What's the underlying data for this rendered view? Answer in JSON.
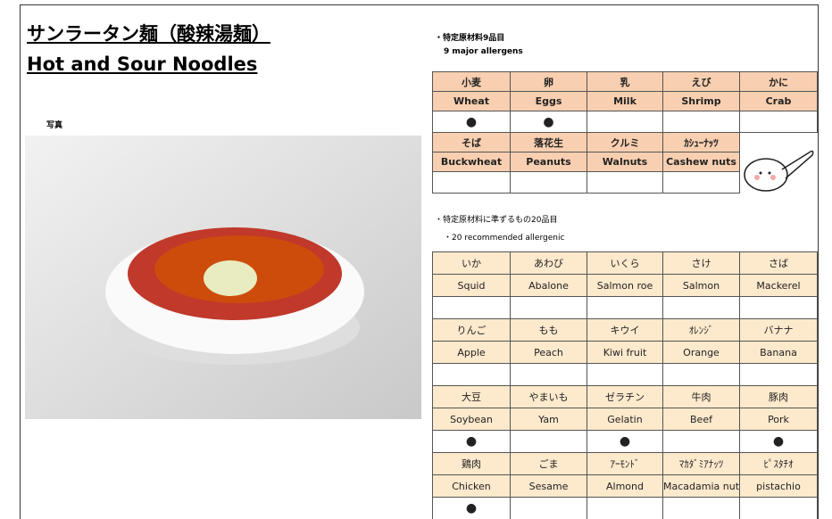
{
  "title_jp": "サンラータン麺（酸辣湯麺）",
  "title_en": "Hot and Sour Noodles",
  "photo_label": "写真",
  "major": {
    "heading": "・特定原材料9品目",
    "subheading": "9 major allergens",
    "items": [
      {
        "jp": "小麦",
        "en": "Wheat",
        "mark": "●"
      },
      {
        "jp": "卵",
        "en": "Eggs",
        "mark": "●"
      },
      {
        "jp": "乳",
        "en": "Milk"
      },
      {
        "jp": "えび",
        "en": "Shrimp"
      },
      {
        "jp": "かに",
        "en": "Crab"
      },
      {
        "jp": "そば",
        "en": "Buckwheat"
      },
      {
        "jp": "落花生",
        "en": "Peanuts"
      },
      {
        "jp": "クルミ",
        "en": "Walnuts"
      },
      {
        "jp": "ｶｼｭｰﾅｯﾂ",
        "en": "Cashew nuts"
      }
    ]
  },
  "recommended": {
    "heading": "・特定原材料に準ずるもの20品目",
    "subheading": "・20 recommended allergenic",
    "items": [
      {
        "jp": "いか",
        "en": "Squid"
      },
      {
        "jp": "あわび",
        "en": "Abalone"
      },
      {
        "jp": "いくら",
        "en": "Salmon roe"
      },
      {
        "jp": "さけ",
        "en": "Salmon"
      },
      {
        "jp": "さば",
        "en": "Mackerel"
      },
      {
        "jp": "りんご",
        "en": "Apple"
      },
      {
        "jp": "もも",
        "en": "Peach"
      },
      {
        "jp": "キウイ",
        "en": "Kiwi fruit"
      },
      {
        "jp": "ｵﾚﾝｼﾞ",
        "en": "Orange"
      },
      {
        "jp": "バナナ",
        "en": "Banana"
      },
      {
        "jp": "大豆",
        "en": "Soybean",
        "mark": "●"
      },
      {
        "jp": "やまいも",
        "en": "Yam"
      },
      {
        "jp": "ゼラチン",
        "en": "Gelatin",
        "mark": "●"
      },
      {
        "jp": "牛肉",
        "en": "Beef"
      },
      {
        "jp": "豚肉",
        "en": "Pork",
        "mark": "●"
      },
      {
        "jp": "鶏肉",
        "en": "Chicken",
        "mark": "●"
      },
      {
        "jp": "ごま",
        "en": "Sesame"
      },
      {
        "jp": "ｱｰﾓﾝﾄﾞ",
        "en": "Almond"
      },
      {
        "jp": "ﾏｶﾀﾞﾐｱﾅｯﾂ",
        "en": "Macadamia nut"
      },
      {
        "jp": "ﾋﾟｽﾀﾁｵ",
        "en": "pistachio"
      }
    ]
  }
}
